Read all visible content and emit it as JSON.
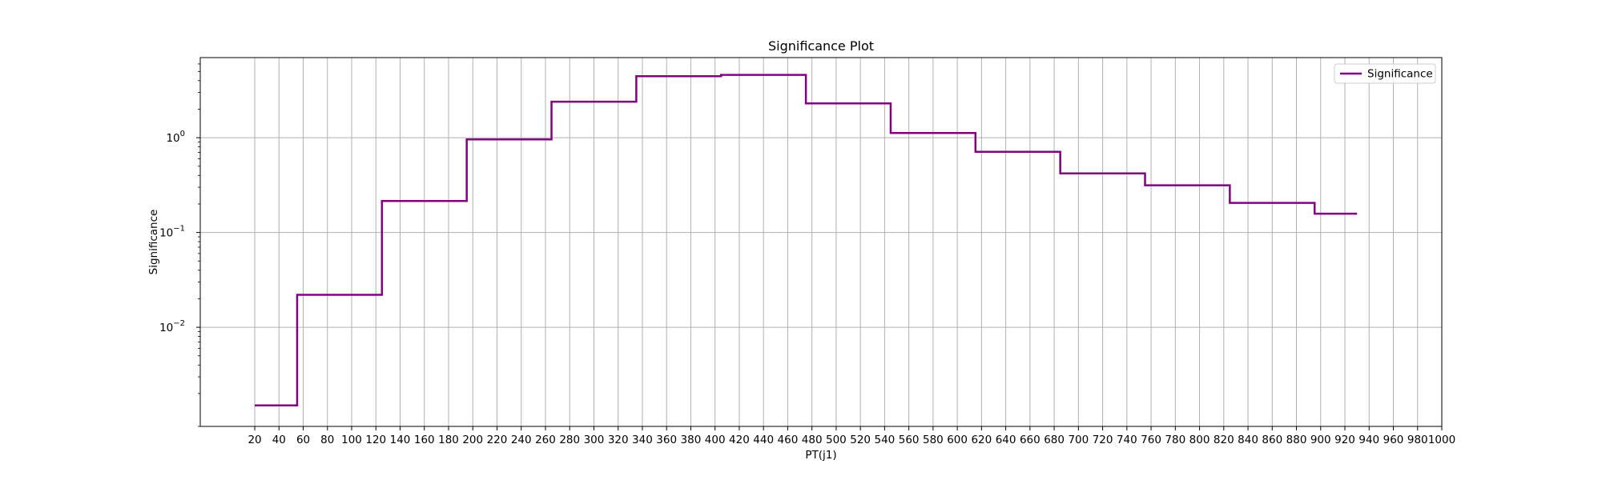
{
  "chart_data": {
    "type": "line",
    "drawstyle": "steps-post",
    "title": "Significance Plot",
    "xlabel": "PT(j1)",
    "ylabel": "Significance",
    "xscale": "linear",
    "yscale": "log",
    "xlim": [
      -25,
      1000
    ],
    "ylim": [
      0.0009,
      7
    ],
    "xticks": [
      20,
      40,
      60,
      80,
      100,
      120,
      140,
      160,
      180,
      200,
      220,
      240,
      260,
      280,
      300,
      320,
      340,
      360,
      380,
      400,
      420,
      440,
      460,
      480,
      500,
      520,
      540,
      560,
      580,
      600,
      620,
      640,
      660,
      680,
      700,
      720,
      740,
      760,
      780,
      800,
      820,
      840,
      860,
      880,
      900,
      920,
      940,
      960,
      980,
      1000
    ],
    "yticks": [
      {
        "value": 0.01,
        "base": "10",
        "exp": "−2"
      },
      {
        "value": 0.1,
        "base": "10",
        "exp": "−1"
      },
      {
        "value": 1,
        "base": "10",
        "exp": "0"
      }
    ],
    "grid": true,
    "legend_position": "top-right",
    "series": [
      {
        "name": "Significance",
        "color": "#800080",
        "x": [
          20,
          55,
          125,
          195,
          265,
          335,
          405,
          475,
          545,
          615,
          685,
          755,
          825,
          895,
          930
        ],
        "y": [
          0.0015,
          0.022,
          0.215,
          0.96,
          2.4,
          4.45,
          4.6,
          2.3,
          1.12,
          0.71,
          0.42,
          0.315,
          0.205,
          0.158,
          0.158
        ]
      }
    ]
  }
}
